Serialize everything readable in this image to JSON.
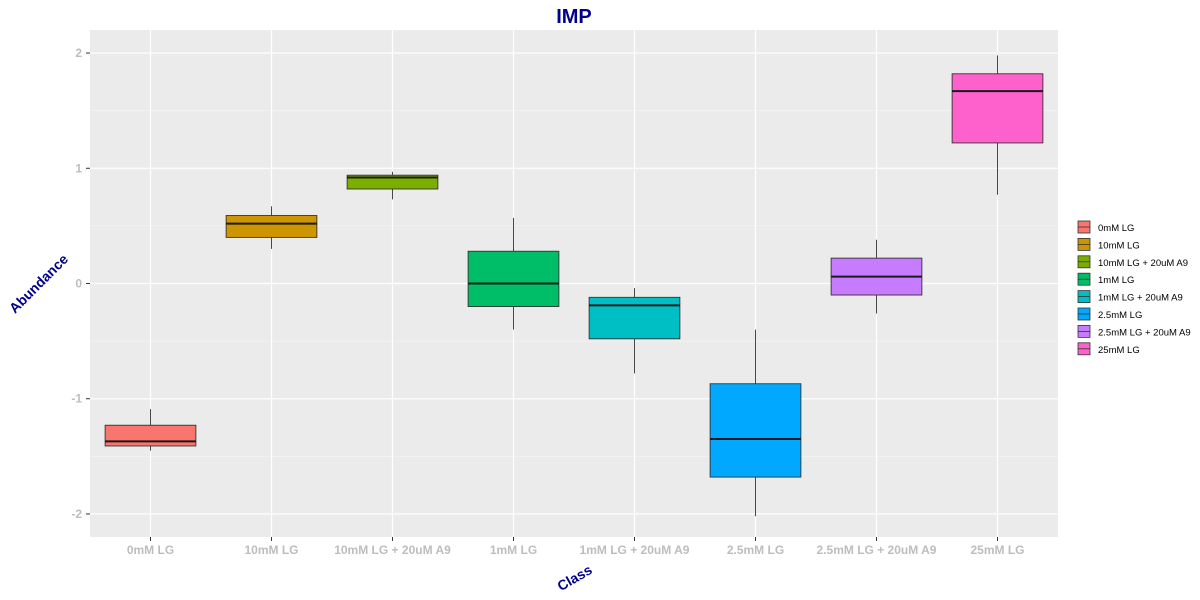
{
  "chart_data": {
    "type": "box",
    "title": "IMP",
    "xlabel": "Class",
    "ylabel": "Abundance",
    "ylim": [
      -2.2,
      2.2
    ],
    "yticks": [
      -2,
      -1,
      0,
      1,
      2
    ],
    "yticklabels": [
      "-2",
      "-1",
      "0",
      "1",
      "2"
    ],
    "grid": true,
    "legend_position": "right",
    "categories": [
      "0mM LG",
      "10mM LG",
      "10mM LG + 20uM A9",
      "1mM LG",
      "1mM LG + 20uM A9",
      "2.5mM LG",
      "2.5mM LG + 20uM A9",
      "25mM LG"
    ],
    "boxes": [
      {
        "whisker_low": -1.45,
        "q1": -1.41,
        "median": -1.37,
        "q3": -1.23,
        "whisker_high": -1.09,
        "color": "#F8766D"
      },
      {
        "whisker_low": 0.3,
        "q1": 0.4,
        "median": 0.52,
        "q3": 0.59,
        "whisker_high": 0.67,
        "color": "#CD9600"
      },
      {
        "whisker_low": 0.73,
        "q1": 0.82,
        "median": 0.92,
        "q3": 0.94,
        "whisker_high": 0.97,
        "color": "#7CAE00"
      },
      {
        "whisker_low": -0.4,
        "q1": -0.2,
        "median": 0.0,
        "q3": 0.28,
        "whisker_high": 0.57,
        "color": "#00BE67"
      },
      {
        "whisker_low": -0.78,
        "q1": -0.48,
        "median": -0.19,
        "q3": -0.12,
        "whisker_high": -0.04,
        "color": "#00BFC4"
      },
      {
        "whisker_low": -2.02,
        "q1": -1.68,
        "median": -1.35,
        "q3": -0.87,
        "whisker_high": -0.4,
        "color": "#00A9FF"
      },
      {
        "whisker_low": -0.26,
        "q1": -0.1,
        "median": 0.06,
        "q3": 0.22,
        "whisker_high": 0.38,
        "color": "#C77CFF"
      },
      {
        "whisker_low": 0.77,
        "q1": 1.22,
        "median": 1.67,
        "q3": 1.82,
        "whisker_high": 1.98,
        "color": "#FF61CC"
      }
    ]
  }
}
